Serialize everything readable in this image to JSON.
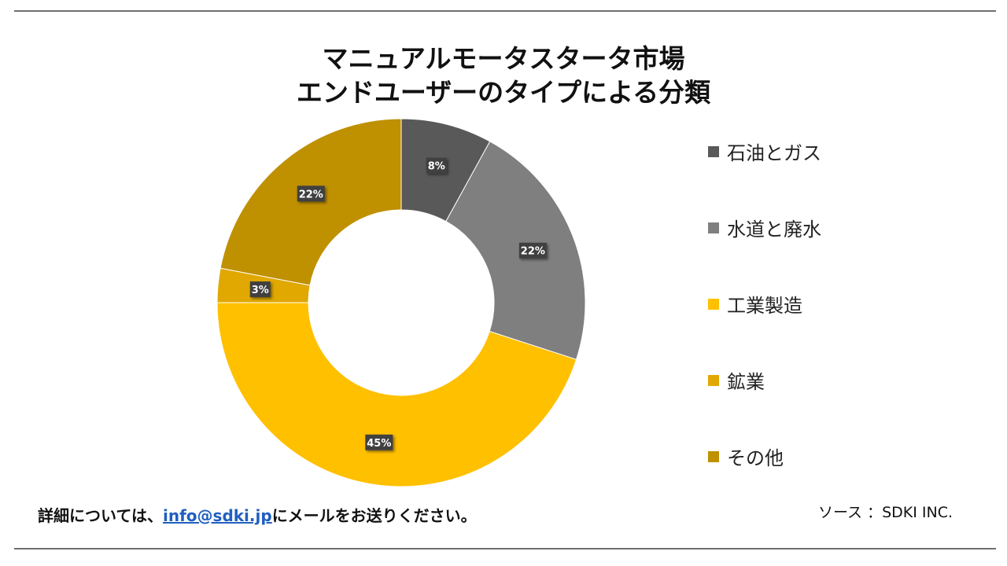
{
  "title_line1": "マニュアルモータスタータ市場",
  "title_line2": "エンドユーザーのタイプによる分類",
  "chart_data": {
    "type": "pie",
    "subtype": "donut",
    "title": "マニュアルモータスタータ市場 エンドユーザーのタイプによる分類",
    "categories": [
      "石油とガス",
      "水道と廃水",
      "工業製造",
      "鉱業",
      "その他"
    ],
    "values": [
      8,
      22,
      45,
      3,
      22
    ],
    "labels": [
      "8%",
      "22%",
      "45%",
      "3%",
      "22%"
    ],
    "colors": [
      "#595959",
      "#7f7f7f",
      "#ffc000",
      "#e0a800",
      "#bf9000"
    ],
    "unit": "%",
    "legend_position": "right"
  },
  "footer": {
    "contact_prefix": "詳細については、",
    "email": "info@sdki.jp",
    "contact_suffix": "にメールをお送りください。",
    "source": "ソース ：SDKI INC."
  }
}
